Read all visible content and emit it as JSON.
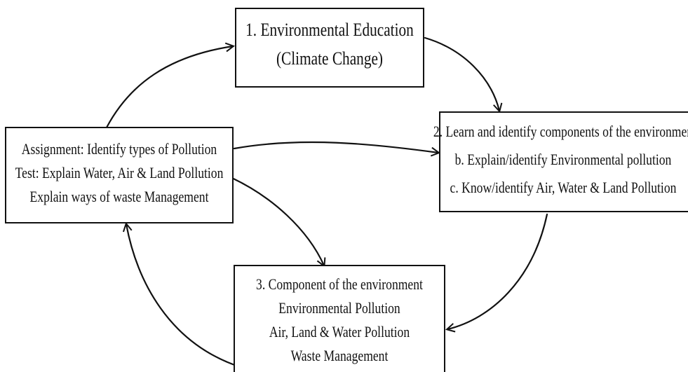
{
  "nodes": [
    {
      "lines": [
        "1. Environmental Education",
        "(Climate Change)"
      ]
    },
    {
      "lines": [
        "2. Learn and identify components of the environmen",
        "b. Explain/identify Environmental pollution",
        "c. Know/identify Air, Water & Land Pollution"
      ]
    },
    {
      "lines": [
        "3. Component of the environment",
        "Environmental Pollution",
        "Air, Land & Water Pollution",
        "Waste Management"
      ]
    },
    {
      "lines": [
        "Assignment: Identify types of Pollution",
        "Test: Explain Water, Air & Land Pollution",
        "Explain ways of waste Management"
      ]
    }
  ]
}
